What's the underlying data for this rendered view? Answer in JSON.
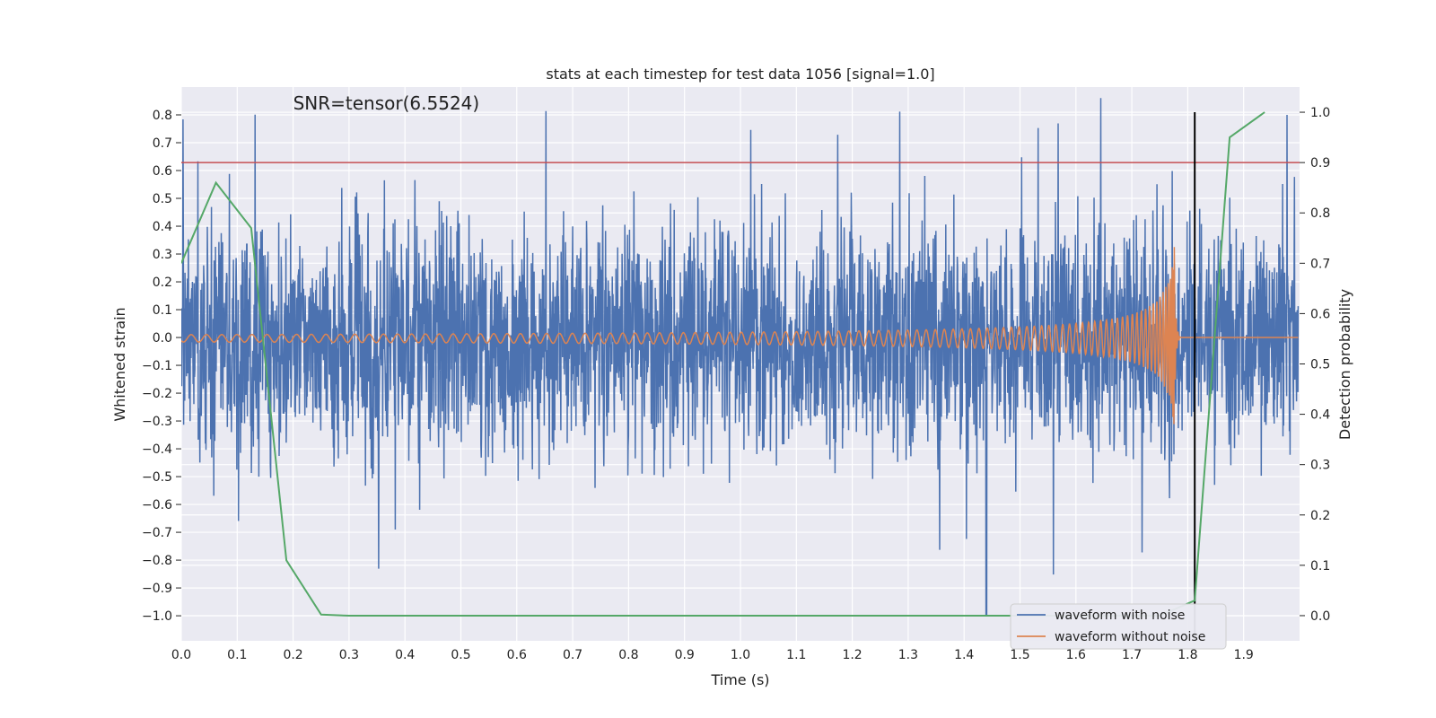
{
  "chart_data": {
    "type": "line",
    "title": "stats at each timestep for test data 1056 [signal=1.0]",
    "xlabel": "Time (s)",
    "ylabel": "Whitened strain",
    "y2label": "Detection probability",
    "xlim": [
      0.0,
      2.0
    ],
    "ylim": [
      -1.09,
      0.9
    ],
    "y2lim": [
      -0.05,
      1.05
    ],
    "x_ticks": [
      0.0,
      0.1,
      0.2,
      0.3,
      0.4,
      0.5,
      0.6,
      0.7,
      0.8,
      0.9,
      1.0,
      1.1,
      1.2,
      1.3,
      1.4,
      1.5,
      1.6,
      1.7,
      1.8,
      1.9
    ],
    "x_tick_labels": [
      "0.0",
      "0.1",
      "0.2",
      "0.3",
      "0.4",
      "0.5",
      "0.6",
      "0.7",
      "0.8",
      "0.9",
      "1.0",
      "1.1",
      "1.2",
      "1.3",
      "1.4",
      "1.5",
      "1.6",
      "1.7",
      "1.8",
      "1.9"
    ],
    "y_ticks": [
      0.8,
      0.7,
      0.6,
      0.5,
      0.4,
      0.3,
      0.2,
      0.1,
      0.0,
      -0.1,
      -0.2,
      -0.3,
      -0.4,
      -0.5,
      -0.6,
      -0.7,
      -0.8,
      -0.9,
      -1.0
    ],
    "y_tick_labels": [
      "0.8",
      "0.7",
      "0.6",
      "0.5",
      "0.4",
      "0.3",
      "0.2",
      "0.1",
      "0.0",
      "−0.1",
      "−0.2",
      "−0.3",
      "−0.4",
      "−0.5",
      "−0.6",
      "−0.7",
      "−0.8",
      "−0.9",
      "−1.0"
    ],
    "y2_ticks": [
      1.0,
      0.9,
      0.8,
      0.7,
      0.6,
      0.5,
      0.4,
      0.3,
      0.2,
      0.1,
      0.0
    ],
    "y2_tick_labels": [
      "1.0",
      "0.9",
      "0.8",
      "0.7",
      "0.6",
      "0.5",
      "0.4",
      "0.3",
      "0.2",
      "0.1",
      "0.0"
    ],
    "grid": true,
    "legend_position": "bottom-right",
    "series": [
      {
        "name": "waveform with noise",
        "axis": "left",
        "color": "#4c72b0",
        "description": "whitened noisy strain, dense fluctuations roughly between -0.8 and 0.8 with a spike to -1.0 near t=1.44"
      },
      {
        "name": "waveform without noise",
        "axis": "left",
        "color": "#dd8452",
        "description": "chirp signal growing in amplitude and frequency, merger near t=1.77, flat zero afterwards"
      },
      {
        "name": "detection probability",
        "axis": "right",
        "color": "#55a868",
        "x": [
          0.0,
          0.062,
          0.125,
          0.188,
          0.25,
          0.3,
          1.5,
          1.6,
          1.75,
          1.8125,
          1.875,
          1.9375
        ],
        "values": [
          0.7,
          0.86,
          0.77,
          0.11,
          0.002,
          0.0,
          0.0,
          0.0,
          0.0,
          0.03,
          0.95,
          1.0
        ]
      }
    ],
    "annotations": {
      "threshold_line": {
        "axis": "right",
        "y": 0.9,
        "color": "#c44e52"
      },
      "event_marker": {
        "x": 1.8125,
        "color": "#000000"
      },
      "snr_text": "SNR=tensor(6.5524)",
      "snr_text_x": 0.2,
      "snr_text_y": 0.82
    }
  }
}
